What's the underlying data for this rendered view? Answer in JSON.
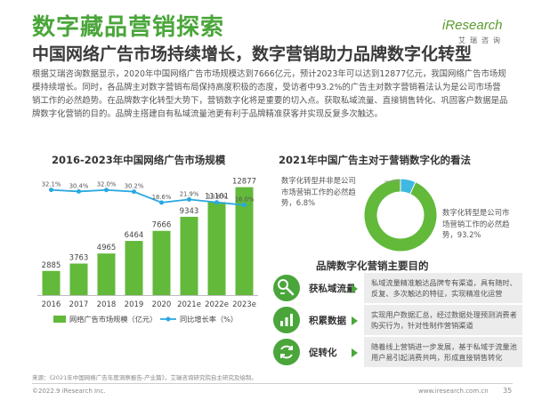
{
  "header": {
    "title": "数字藏品营销探索",
    "subtitle": "中国网络广告市场持续增长，数字营销助力品牌数字化转型",
    "logo_brand": "iResearch",
    "logo_cn": "艾瑞咨询"
  },
  "intro_text": "根据艾瑞咨询数据显示，2020年中国网络广告市场规模达到7666亿元，预计2023年可以达到12877亿元，我国网络广告市场规模持续增长。同时，各品牌主对数字营销布局保持高度积极的态度，受访者中93.2%的广告主对数字营销看法认为是公司市场营销工作的必然趋势。在品牌数字化转型大势下，营销数字化将是重要的切入点。获取私域流量、直接销售转化、巩固客户数据是品牌数字化营销的目的。品牌主搭建自有私域流量池更有利于品牌精准获客并实现反复多次触达。",
  "chart_data": [
    {
      "type": "bar",
      "title": "2016-2023年中国网络广告市场规模",
      "categories": [
        "2016",
        "2017",
        "2018",
        "2019",
        "2020",
        "2021e",
        "2022e",
        "2023e"
      ],
      "series": [
        {
          "name": "网络广告市场规模（亿元）",
          "values": [
            2885,
            3763,
            4965,
            6464,
            7666,
            9343,
            11101,
            12877
          ],
          "value_labels": [
            "2885",
            "3763",
            "4965",
            "6464",
            "7666",
            "9343",
            "11101",
            "12877"
          ],
          "color": "#62b93a"
        },
        {
          "name": "同比增长率（%）",
          "type": "line",
          "values": [
            32.1,
            30.4,
            32.0,
            30.2,
            18.6,
            21.9,
            18.8,
            16.0
          ],
          "value_labels": [
            "32.1%",
            "30.4%",
            "32.0%",
            "30.2%",
            "18.6%",
            "21.9%",
            "18.8%",
            "16.0%"
          ],
          "color": "#29a8e0"
        }
      ],
      "ylim": [
        0,
        14000
      ],
      "y2lim": [
        -80,
        45
      ],
      "xlabel": "",
      "ylabel": "",
      "legend": "bottom",
      "grid": false
    },
    {
      "type": "pie",
      "title": "2021年中国广告主对于营销数字化的看法",
      "slices": [
        {
          "label": "数字化转型并非是公司市场营销工作的必然趋势，6.8%",
          "value": 6.8,
          "color": "#3fb8e2"
        },
        {
          "label": "数字化转型是公司市场营销工作的必然趋势，93.2%",
          "value": 93.2,
          "color": "#62b93a"
        }
      ]
    }
  ],
  "goals": {
    "title": "品牌数字化营销主要目的",
    "items": [
      {
        "name": "获私域流量",
        "icon": "traffic-icon",
        "desc": "私域流量精准触达品牌专有渠道，具有随时、反复、多次触达的特征，实现精准化运营"
      },
      {
        "name": "积累数据",
        "icon": "data-icon",
        "desc": "实现用户数据汇总，经过数据处理预测消费者购买行为，针对性制作营销渠道"
      },
      {
        "name": "促转化",
        "icon": "conversion-icon",
        "desc": "随着线上营销进一步发展，基于私域于流量池用户易引起消费共鸣，形成直接销售转化"
      }
    ],
    "accent": "#4aa63a"
  },
  "footer": {
    "source": "来源：《2021年中国网络广告年度洞察报告-产业篇》，艾瑞咨询研究院自主研究及绘制。",
    "copyright": "©2022.9 iResearch Inc.",
    "website": "www.iresearch.com.cn",
    "page_number": "35"
  }
}
